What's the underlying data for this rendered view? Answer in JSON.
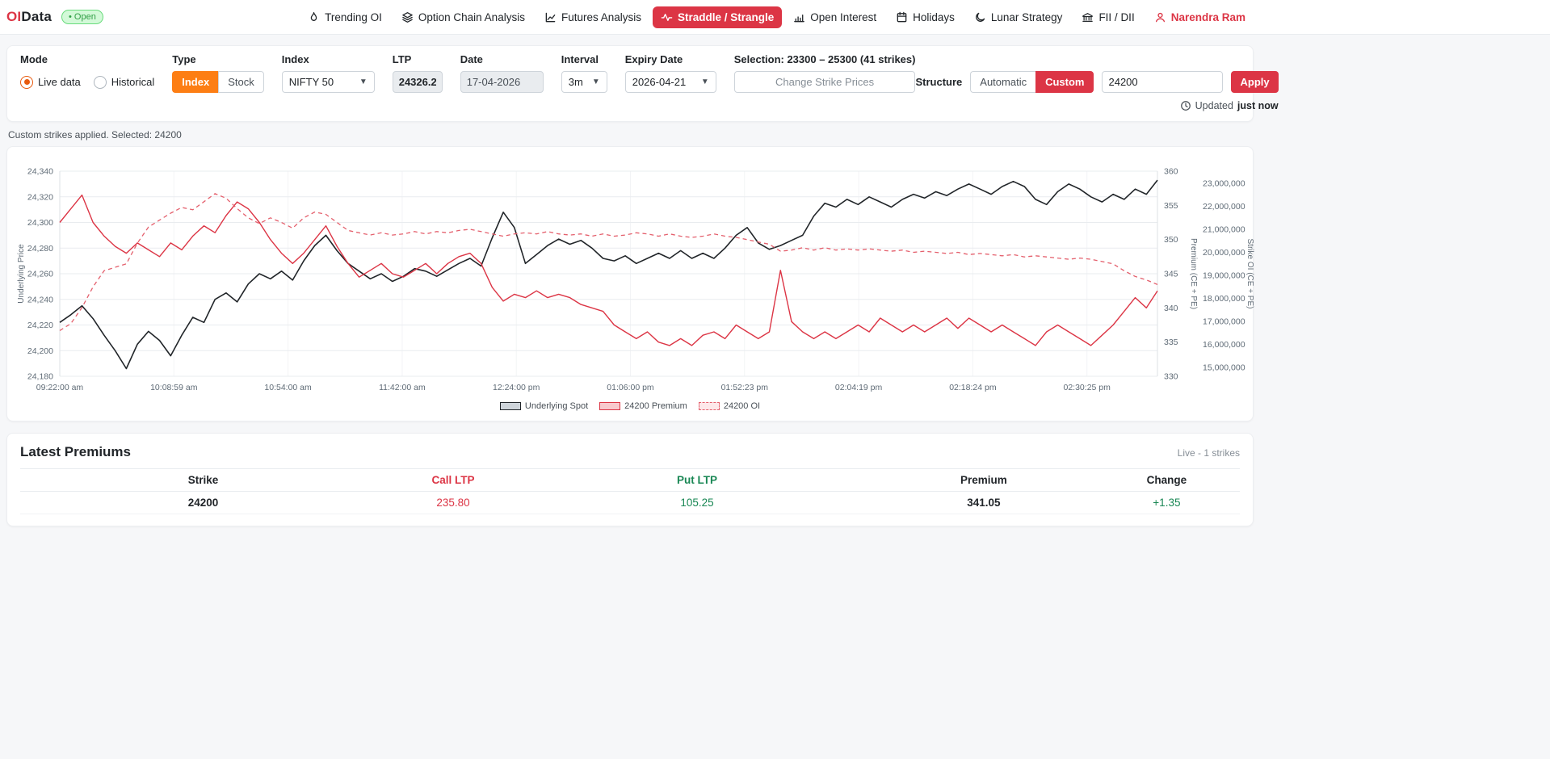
{
  "navbar": {
    "brand": {
      "oi": "OI",
      "data": "Data"
    },
    "status_badge": "• Open",
    "items": [
      {
        "label": "Trending OI"
      },
      {
        "label": "Option Chain Analysis"
      },
      {
        "label": "Futures Analysis"
      },
      {
        "label": "Straddle / Strangle"
      },
      {
        "label": "Open Interest"
      },
      {
        "label": "Holidays"
      },
      {
        "label": "Lunar Strategy"
      },
      {
        "label": "FII / DII"
      }
    ],
    "user": "Narendra Ram"
  },
  "controls": {
    "mode": {
      "label": "Mode",
      "options": [
        "Live data",
        "Historical"
      ],
      "selected": "Live data"
    },
    "type": {
      "label": "Type",
      "options": [
        "Index",
        "Stock"
      ],
      "selected": "Index"
    },
    "index": {
      "label": "Index",
      "value": "NIFTY 50"
    },
    "ltp": {
      "label": "LTP",
      "value": "24326.25"
    },
    "date": {
      "label": "Date",
      "value": "17-04-2026"
    },
    "interval": {
      "label": "Interval",
      "value": "3m"
    },
    "expiry": {
      "label": "Expiry Date",
      "value": "2026-04-21"
    },
    "selection": "Selection: 23300 – 25300 (41 strikes)",
    "change_strikes_label": "Change Strike Prices",
    "structure": {
      "label": "Structure",
      "options": [
        "Automatic",
        "Custom"
      ],
      "selected": "Custom",
      "input_value": "24200",
      "apply_label": "Apply"
    },
    "updated": {
      "prefix": "Updated",
      "value": "just now"
    }
  },
  "status_line": "Custom strikes applied. Selected: 24200",
  "chart_data": {
    "type": "line",
    "x_ticks": [
      "09:22:00 am",
      "10:08:59 am",
      "10:54:00 am",
      "11:42:00 am",
      "12:24:00 pm",
      "01:06:00 pm",
      "01:52:23 pm",
      "02:04:19 pm",
      "02:18:24 pm",
      "02:30:25 pm"
    ],
    "left_axis": {
      "label": "Underlying Price",
      "min": 24180,
      "max": 24340,
      "ticks": [
        "24,340",
        "24,320",
        "24,300",
        "24,280",
        "24,260",
        "24,240",
        "24,220",
        "24,200",
        "24,180"
      ]
    },
    "right_axis_premium": {
      "label": "Premium (CE + PE)",
      "min": 330,
      "max": 360,
      "ticks": [
        "360",
        "355",
        "350",
        "345",
        "340",
        "335",
        "330"
      ]
    },
    "right_axis_oi": {
      "label": "Strike OI (CE + PE)",
      "min": 15000000,
      "max": 23000000,
      "ticks": [
        "23,000,000",
        "22,000,000",
        "21,000,000",
        "20,000,000",
        "19,000,000",
        "18,000,000",
        "17,000,000",
        "16,000,000",
        "15,000,000"
      ]
    },
    "grid": true,
    "legend_position": "bottom",
    "series": [
      {
        "name": "Underlying Spot",
        "axis": "left",
        "color": "#212529",
        "legend_fill": "#ced4da",
        "style": "solid",
        "width": 1.6,
        "values": [
          24222,
          24228,
          24235,
          24225,
          24212,
          24200,
          24186,
          24205,
          24215,
          24208,
          24196,
          24212,
          24226,
          24222,
          24240,
          24245,
          24238,
          24252,
          24260,
          24256,
          24262,
          24255,
          24270,
          24282,
          24290,
          24278,
          24268,
          24262,
          24256,
          24260,
          24254,
          24258,
          24264,
          24262,
          24258,
          24263,
          24268,
          24272,
          24266,
          24288,
          24308,
          24296,
          24268,
          24275,
          24282,
          24287,
          24283,
          24286,
          24280,
          24272,
          24270,
          24274,
          24268,
          24272,
          24276,
          24272,
          24278,
          24272,
          24276,
          24272,
          24280,
          24290,
          24296,
          24284,
          24279,
          24282,
          24286,
          24290,
          24305,
          24315,
          24312,
          24318,
          24314,
          24320,
          24316,
          24312,
          24318,
          24322,
          24319,
          24324,
          24321,
          24326,
          24330,
          24326,
          24322,
          24328,
          24332,
          24328,
          24318,
          24314,
          24324,
          24330,
          24326,
          24320,
          24316,
          24322,
          24318,
          24326,
          24322,
          24333
        ]
      },
      {
        "name": "24200 Premium",
        "axis": "premium",
        "color": "#dc3545",
        "legend_fill": "#f8c9cd",
        "style": "solid",
        "width": 1.4,
        "values": [
          352.5,
          354.5,
          356.5,
          352.5,
          350.5,
          349,
          348,
          349.5,
          348.5,
          347.5,
          349.5,
          348.5,
          350.5,
          352,
          351,
          353.5,
          355.5,
          354.5,
          352.5,
          350,
          348,
          346.5,
          348,
          350,
          352,
          349,
          346.5,
          344.5,
          345.5,
          346.5,
          345,
          344.5,
          345.5,
          346.5,
          345,
          346.5,
          347.5,
          348,
          346.5,
          343,
          341,
          342,
          341.5,
          342.5,
          341.5,
          342,
          341.5,
          340.5,
          340,
          339.5,
          337.5,
          336.5,
          335.5,
          336.5,
          335,
          334.5,
          335.5,
          334.5,
          336,
          336.5,
          335.5,
          337.5,
          336.5,
          335.5,
          336.5,
          345.5,
          338,
          336.5,
          335.5,
          336.5,
          335.5,
          336.5,
          337.5,
          336.5,
          338.5,
          337.5,
          336.5,
          337.5,
          336.5,
          337.5,
          338.5,
          337,
          338.5,
          337.5,
          336.5,
          337.5,
          336.5,
          335.5,
          334.5,
          336.5,
          337.5,
          336.5,
          335.5,
          334.5,
          336,
          337.5,
          339.5,
          341.5,
          340,
          342.5
        ]
      },
      {
        "name": "24200 OI",
        "axis": "oi",
        "color": "#e4606d",
        "legend_fill": "#fde8ea",
        "style": "dashed",
        "width": 1.3,
        "values": [
          16600000,
          16900000,
          17600000,
          18500000,
          19200000,
          19350000,
          19500000,
          20400000,
          21100000,
          21400000,
          21700000,
          21950000,
          21850000,
          22200000,
          22550000,
          22350000,
          21900000,
          21500000,
          21250000,
          21500000,
          21300000,
          21050000,
          21500000,
          21750000,
          21650000,
          21300000,
          20950000,
          20850000,
          20750000,
          20850000,
          20750000,
          20800000,
          20900000,
          20800000,
          20900000,
          20850000,
          20950000,
          21000000,
          20900000,
          20800000,
          20700000,
          20800000,
          20850000,
          20800000,
          20900000,
          20800000,
          20750000,
          20800000,
          20700000,
          20800000,
          20700000,
          20750000,
          20850000,
          20800000,
          20700000,
          20800000,
          20700000,
          20650000,
          20700000,
          20800000,
          20700000,
          20650000,
          20550000,
          20450000,
          20350000,
          20050000,
          20100000,
          20200000,
          20100000,
          20200000,
          20100000,
          20150000,
          20100000,
          20150000,
          20100000,
          20050000,
          20100000,
          20000000,
          20050000,
          20000000,
          19950000,
          20000000,
          19900000,
          19950000,
          19900000,
          19850000,
          19900000,
          19800000,
          19850000,
          19800000,
          19750000,
          19700000,
          19750000,
          19700000,
          19600000,
          19500000,
          19200000,
          18950000,
          18800000,
          18600000
        ]
      }
    ]
  },
  "premiums": {
    "title": "Latest Premiums",
    "live_note": "Live - 1 strikes",
    "columns": [
      "Strike",
      "Call LTP",
      "Put LTP",
      "Premium",
      "Change"
    ],
    "rows": [
      {
        "strike": "24200",
        "call_ltp": "235.80",
        "put_ltp": "105.25",
        "premium": "341.05",
        "change": "+1.35"
      }
    ]
  }
}
